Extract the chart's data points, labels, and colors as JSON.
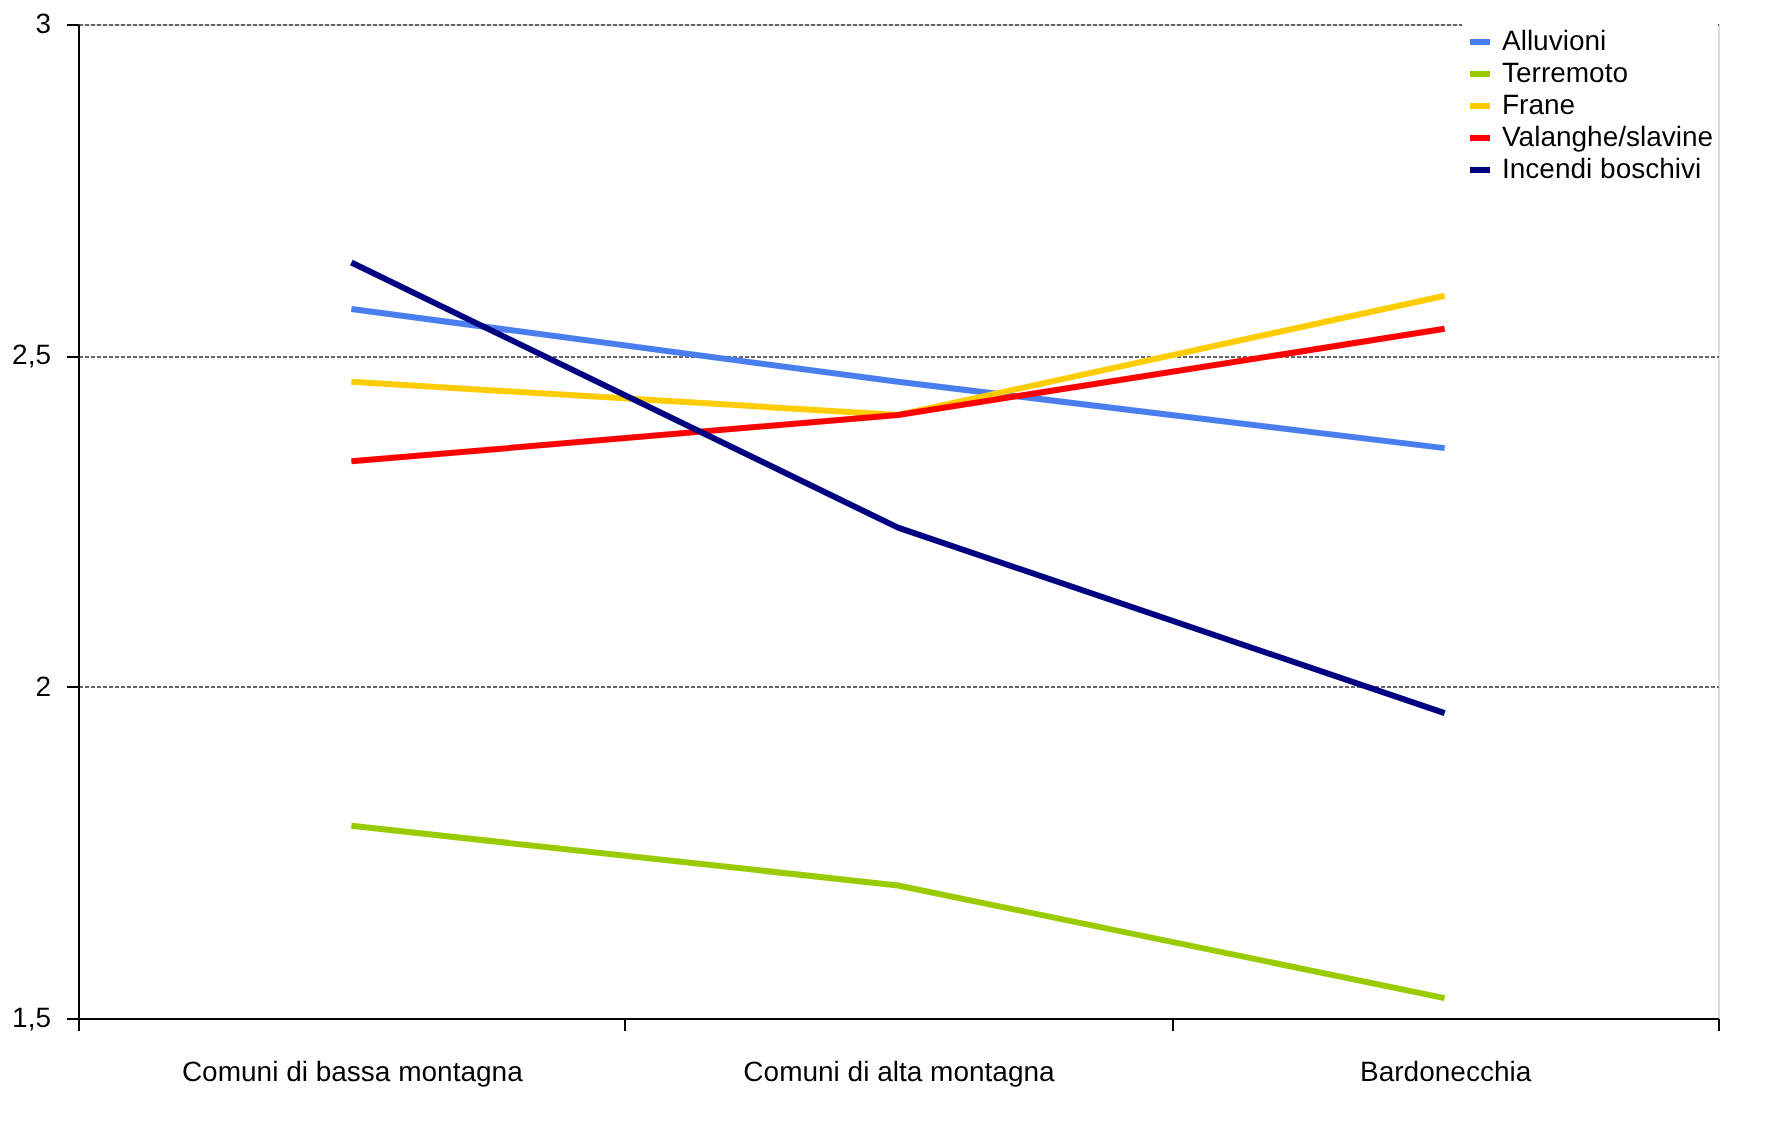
{
  "chart_data": {
    "type": "line",
    "categories": [
      "Comuni di bassa montagna",
      "Comuni di alta montagna",
      "Bardonecchia"
    ],
    "series": [
      {
        "name": "Alluvioni",
        "color": "#4a7eee",
        "values": [
          2.57,
          2.46,
          2.36
        ]
      },
      {
        "name": "Terremoto",
        "color": "#99cc00",
        "values": [
          1.79,
          1.7,
          1.53
        ]
      },
      {
        "name": "Frane",
        "color": "#ffcc00",
        "values": [
          2.46,
          2.41,
          2.59
        ]
      },
      {
        "name": "Valanghe/slavine",
        "color": "#ff0000",
        "values": [
          2.34,
          2.41,
          2.54
        ]
      },
      {
        "name": "Incendi boschivi",
        "color": "#000080",
        "values": [
          2.64,
          2.24,
          1.96
        ]
      }
    ],
    "ylim": [
      1.5,
      3
    ],
    "yticks": [
      {
        "value": 1.5,
        "label": "1,5"
      },
      {
        "value": 2,
        "label": "2"
      },
      {
        "value": 2.5,
        "label": "2,5"
      },
      {
        "value": 3,
        "label": "3"
      }
    ],
    "grid": "y",
    "legend": "top right",
    "marker": "none",
    "line_style": "solid"
  }
}
